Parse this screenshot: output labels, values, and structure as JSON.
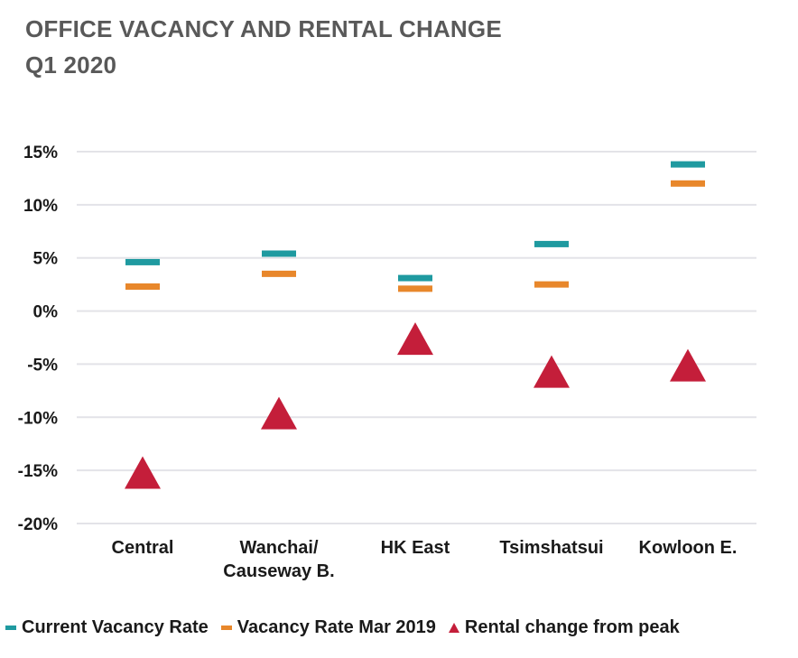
{
  "title": {
    "line1": "OFFICE VACANCY AND RENTAL CHANGE",
    "line2": "Q1 2020"
  },
  "colors": {
    "current_vacancy": "#1f9aa0",
    "vacancy_2019": "#e8872b",
    "rental_change": "#c41e3a",
    "grid": "#e3e3e8"
  },
  "chart_data": {
    "type": "scatter",
    "categories": [
      [
        "Central"
      ],
      [
        "Wanchai/",
        "Causeway B."
      ],
      [
        "HK East"
      ],
      [
        "Tsimshatsui"
      ],
      [
        "Kowloon E."
      ]
    ],
    "series": [
      {
        "name": "Current Vacancy Rate",
        "marker": "dash",
        "values": [
          4.6,
          5.4,
          3.1,
          6.3,
          13.8
        ]
      },
      {
        "name": "Vacancy Rate Mar 2019",
        "marker": "dash",
        "values": [
          2.3,
          3.5,
          2.1,
          2.5,
          12.0
        ]
      },
      {
        "name": "Rental change from peak",
        "marker": "triangle",
        "values": [
          -15.2,
          -9.6,
          -2.6,
          -5.7,
          -5.1
        ]
      }
    ],
    "ylim": [
      -20,
      15
    ],
    "yticks": [
      15,
      10,
      5,
      0,
      -5,
      -10,
      -15,
      -20
    ],
    "ytick_labels": [
      "15%",
      "10%",
      "5%",
      "0%",
      "-5%",
      "-10%",
      "-15%",
      "-20%"
    ],
    "grid": true,
    "legend_position": "bottom"
  }
}
